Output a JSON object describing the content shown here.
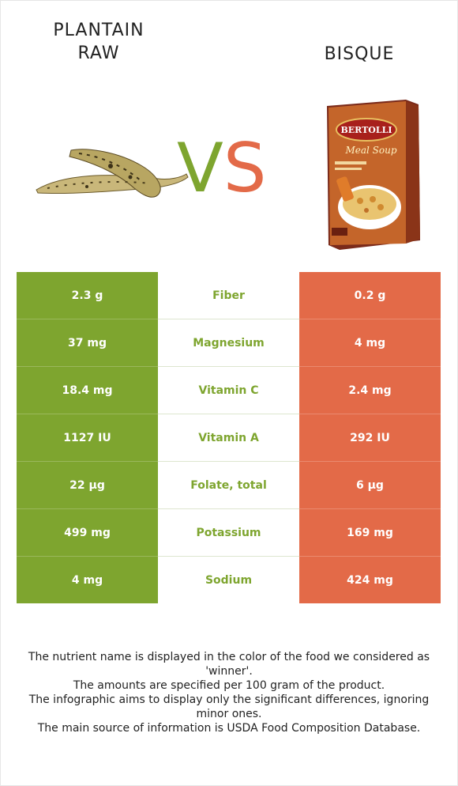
{
  "food_left": {
    "name": "PLANTAIN\nRAW",
    "line1": "PLANTAIN",
    "line2": "RAW",
    "color": "#7ea52f"
  },
  "food_right": {
    "name": "BISQUE",
    "color": "#e36a48"
  },
  "vs": {
    "v": "V",
    "s": "S"
  },
  "rows": [
    {
      "nutrient": "Fiber",
      "left": "2.3 g",
      "right": "0.2 g",
      "winner": "left"
    },
    {
      "nutrient": "Magnesium",
      "left": "37 mg",
      "right": "4 mg",
      "winner": "left"
    },
    {
      "nutrient": "Vitamin C",
      "left": "18.4 mg",
      "right": "2.4 mg",
      "winner": "left"
    },
    {
      "nutrient": "Vitamin A",
      "left": "1127 IU",
      "right": "292 IU",
      "winner": "left"
    },
    {
      "nutrient": "Folate, total",
      "left": "22 µg",
      "right": "6 µg",
      "winner": "left"
    },
    {
      "nutrient": "Potassium",
      "left": "499 mg",
      "right": "169 mg",
      "winner": "left"
    },
    {
      "nutrient": "Sodium",
      "left": "4 mg",
      "right": "424 mg",
      "winner": "left"
    }
  ],
  "box_brand": {
    "brand": "BERTOLLI",
    "product": "Meal Soup"
  },
  "footer": {
    "line1": "The nutrient name is displayed in the color of the food we considered as 'winner'.",
    "line2": "The amounts are specified per 100 gram of the product.",
    "line3": "The infographic aims to display only the significant differences, ignoring minor ones.",
    "line4": "The main source of information is USDA Food Composition Database."
  }
}
